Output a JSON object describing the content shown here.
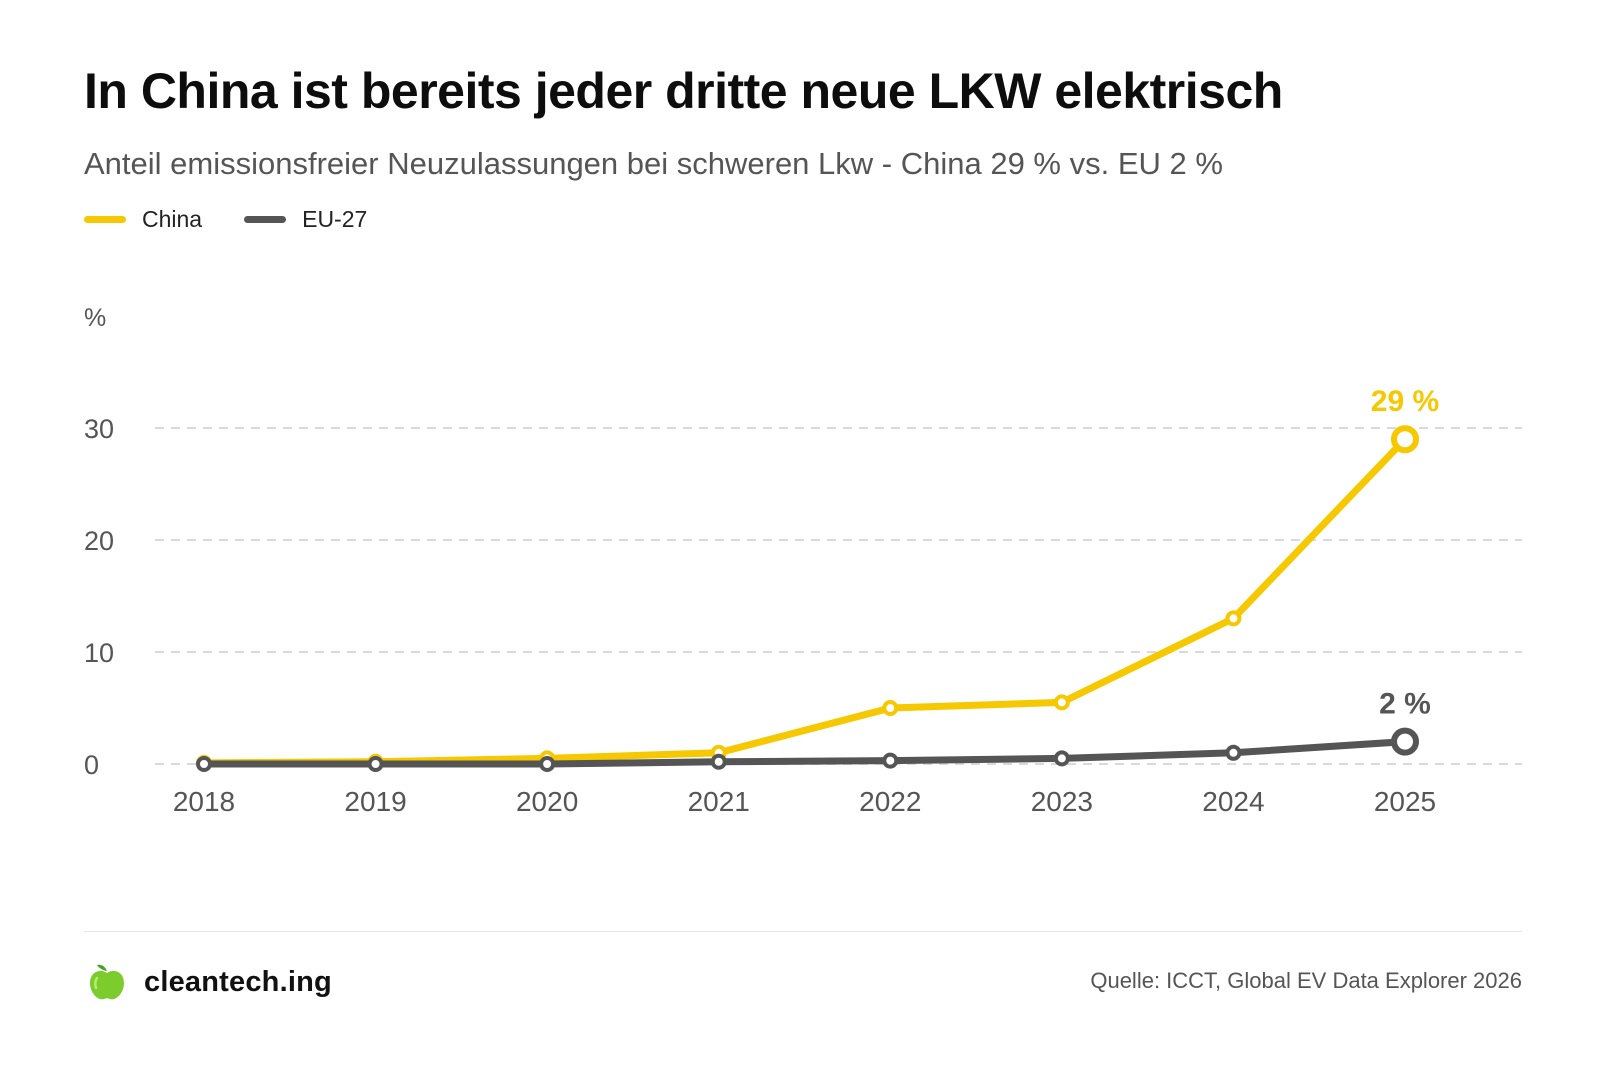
{
  "title": "In China ist bereits jeder dritte neue LKW elektrisch",
  "subtitle": "Anteil emissionsfreier Neuzulassungen bei schweren Lkw - China 29 % vs. EU 2 %",
  "legend": [
    {
      "label": "China",
      "color": "#F5C800"
    },
    {
      "label": "EU-27",
      "color": "#555555"
    }
  ],
  "unit_label": "%",
  "source": "Quelle: ICCT, Global EV Data Explorer 2026",
  "brand": {
    "name": "cleantech.ing",
    "icon": "apple-icon"
  },
  "chart_data": {
    "type": "line",
    "title": "In China ist bereits jeder dritte neue LKW elektrisch",
    "ylabel": "%",
    "xlabel": "",
    "x": [
      "2018",
      "2019",
      "2020",
      "2021",
      "2022",
      "2023",
      "2024",
      "2025"
    ],
    "ylim": [
      0,
      30
    ],
    "yticks": [
      0,
      10,
      20,
      30
    ],
    "grid": true,
    "legend_position": "top-left",
    "series": [
      {
        "name": "China",
        "color": "#F5C800",
        "values": [
          0.1,
          0.2,
          0.5,
          1.0,
          5.0,
          5.5,
          13.0,
          29.0
        ],
        "end_label": "29 %"
      },
      {
        "name": "EU-27",
        "color": "#555555",
        "values": [
          0.0,
          0.0,
          0.0,
          0.2,
          0.3,
          0.5,
          1.0,
          2.0
        ],
        "end_label": "2 %"
      }
    ]
  }
}
